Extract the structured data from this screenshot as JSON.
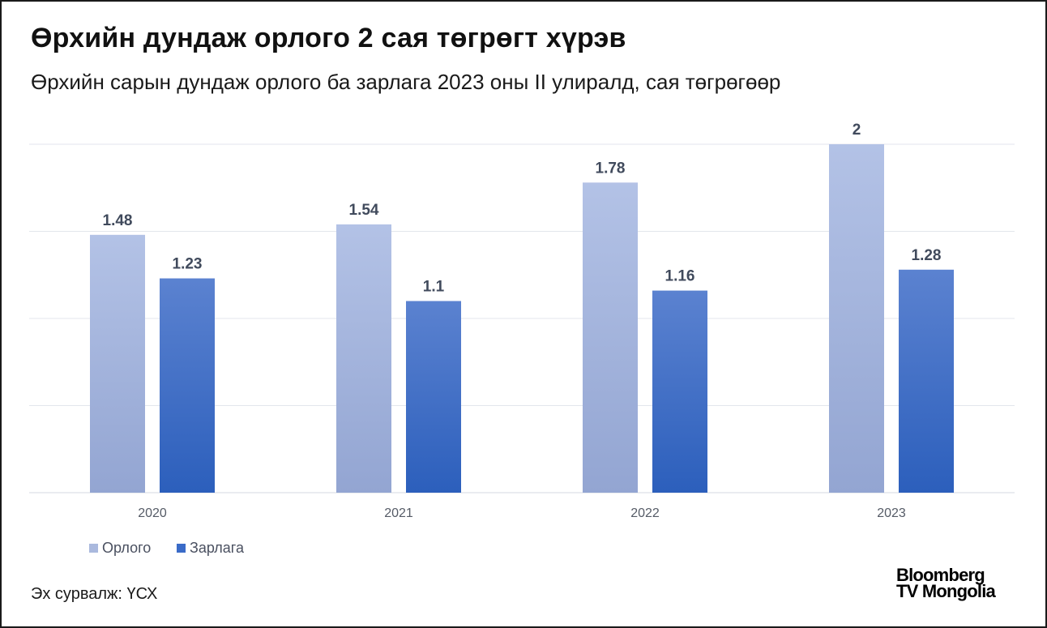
{
  "title": "Өрхийн дундаж орлого 2 сая төгрөгт хүрэв",
  "subtitle": "Өрхийн сарын дундаж орлого ба зарлага 2023 оны II улиралд, сая төгрөгөөр",
  "source": "Эх сурвалж: ҮСХ",
  "logo": {
    "line1": "Bloomberg",
    "line2": "TV Mongolia"
  },
  "chart_data": {
    "type": "bar",
    "title": "Өрхийн сарын дундаж орлого ба зарлага 2023 оны II улиралд, сая төгрөгөөр",
    "categories": [
      "2020",
      "2021",
      "2022",
      "2023"
    ],
    "series": [
      {
        "name": "Орлого",
        "values": [
          1.48,
          1.54,
          1.78,
          2
        ],
        "color": "#aab9de",
        "labels": [
          "1.48",
          "1.54",
          "1.78",
          "2"
        ]
      },
      {
        "name": "Зарлага",
        "values": [
          1.23,
          1.1,
          1.16,
          1.28
        ],
        "color": "#3a6bc8",
        "labels": [
          "1.23",
          "1.1",
          "1.16",
          "1.28"
        ]
      }
    ],
    "ylim": [
      0,
      2
    ],
    "gridlines": true,
    "legend": "bottom-left",
    "xlabel": "",
    "ylabel": ""
  }
}
